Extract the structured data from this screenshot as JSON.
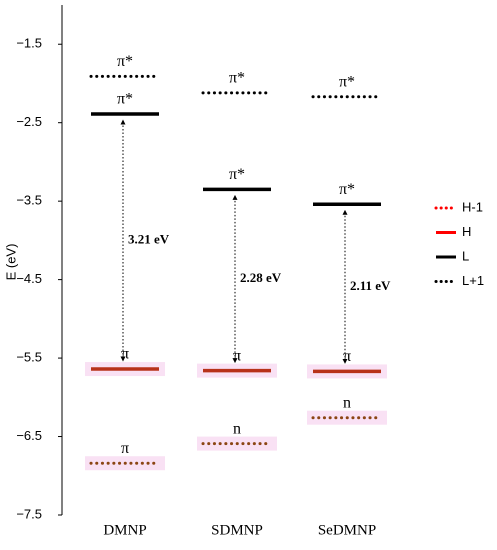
{
  "chart_data": {
    "type": "energy-levels",
    "ylabel": "E (eV)",
    "categories": [
      "DMNP",
      "SDMNP",
      "SeDMNP"
    ],
    "ylim": [
      -7.5,
      -1
    ],
    "yticks": [
      {
        "value": -1.5,
        "label": "−1.5"
      },
      {
        "value": -2.5,
        "label": "−2.5"
      },
      {
        "value": -3.5,
        "label": "−3.5"
      },
      {
        "value": -4.5,
        "label": "−4.5"
      },
      {
        "value": -5.5,
        "label": "−5.5"
      },
      {
        "value": -6.5,
        "label": "−6.5"
      },
      {
        "value": -7.5,
        "label": "−7.5"
      }
    ],
    "series": [
      {
        "name": "H-1",
        "color": "#8b4513",
        "style": "dotted",
        "values": [
          -6.84,
          -6.59,
          -6.26
        ],
        "labels": [
          "π",
          "n",
          "n"
        ]
      },
      {
        "name": "H",
        "color": "#b8321a",
        "style": "solid",
        "values": [
          -5.64,
          -5.66,
          -5.67
        ],
        "labels": [
          "π",
          "π",
          "π"
        ]
      },
      {
        "name": "L",
        "color": "#000000",
        "style": "solid",
        "values": [
          -2.39,
          -3.35,
          -3.54
        ],
        "labels": [
          "π*",
          "π*",
          "π*"
        ]
      },
      {
        "name": "L+1",
        "color": "#000000",
        "style": "dotted",
        "values": [
          -1.91,
          -2.12,
          -2.17
        ],
        "labels": [
          "π*",
          "π*",
          "π*"
        ]
      }
    ],
    "legend_colors": [
      "#ff0000",
      "#ff0000",
      "#000000",
      "#000000"
    ],
    "gaps": [
      {
        "value": 3.21,
        "label": "3.21 eV"
      },
      {
        "value": 2.28,
        "label": "2.28 eV"
      },
      {
        "value": 2.11,
        "label": "2.11 eV"
      }
    ]
  }
}
